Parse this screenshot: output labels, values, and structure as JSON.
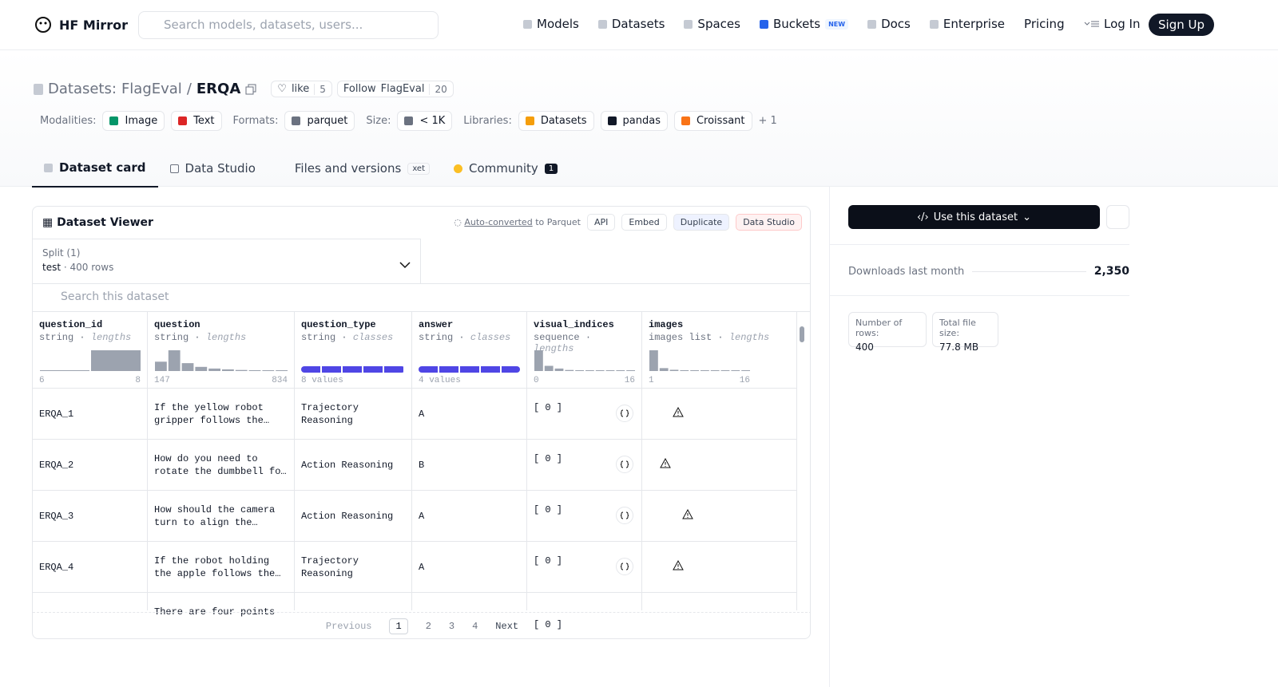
{
  "nav": {
    "brand": "HF Mirror",
    "search": "Search models, datasets, users...",
    "links": [
      "Models",
      "Datasets",
      "Spaces",
      "Buckets",
      "Docs",
      "Enterprise",
      "Pricing"
    ],
    "new_badge": "NEW",
    "login": "Log In",
    "signup": "Sign Up"
  },
  "header": {
    "kind": "Datasets:",
    "org": "FlagEval",
    "separator": "/",
    "name": "ERQA",
    "like": "like",
    "likes": 5,
    "follow": "Follow",
    "follow_org": "FlagEval",
    "followers": 20
  },
  "tags": [
    {
      "label": "Modalities:",
      "items": [
        "Image",
        "Text"
      ]
    },
    {
      "label": "Formats:",
      "items": [
        "parquet"
      ]
    },
    {
      "label": "Size:",
      "items": [
        "< 1K"
      ]
    },
    {
      "label": "Libraries:",
      "items": [
        "Datasets",
        "pandas",
        "Croissant"
      ]
    }
  ],
  "tags_more": "+ 1",
  "tabs": [
    "Dataset card",
    "Data Studio",
    "Files and versions",
    "Community"
  ],
  "xet_badge": "xet",
  "community_count": 1,
  "viewer": {
    "title": "Dataset Viewer",
    "auto_converted": "Auto-converted",
    "to_parquet": "to Parquet",
    "buttons": [
      "API",
      "Embed",
      "Duplicate",
      "Data Studio"
    ],
    "split_label": "Split (1)",
    "split": "test",
    "dot": "·",
    "split_rows": "400 rows",
    "search": "Search this dataset",
    "columns": [
      {
        "name": "question_id",
        "dtype": "string",
        "stat": "lengths",
        "histogram": [
          2,
          100
        ],
        "range": [
          6,
          8
        ]
      },
      {
        "name": "question",
        "dtype": "string",
        "stat": "lengths",
        "histogram": [
          45,
          100,
          38,
          20,
          12,
          8,
          5,
          4,
          3,
          3
        ],
        "range": [
          147,
          834
        ]
      },
      {
        "name": "question_type",
        "dtype": "string",
        "stat": "classes",
        "range": [
          "8 values"
        ]
      },
      {
        "name": "answer",
        "dtype": "string",
        "stat": "classes",
        "range": [
          "4 values"
        ]
      },
      {
        "name": "visual_indices",
        "dtype": "sequence",
        "stat": "lengths",
        "histogram": [
          100,
          25,
          12,
          5,
          4,
          0,
          0,
          0,
          0,
          3
        ],
        "range": [
          0,
          16
        ]
      },
      {
        "name": "images",
        "dtype": "images list",
        "stat": "lengths",
        "histogram": [
          100,
          14,
          6,
          4,
          0,
          0,
          0,
          0,
          0,
          3
        ],
        "range": [
          1,
          16
        ]
      }
    ],
    "rows": [
      {
        "question_id": "ERQA_1",
        "question": "If the yellow robot gripper follows the…",
        "question_type": "Trajectory Reasoning",
        "answer": "A",
        "visual_indices": "[ 0 ]"
      },
      {
        "question_id": "ERQA_2",
        "question": "How do you need to rotate the dumbbell fo…",
        "question_type": "Action Reasoning",
        "answer": "B",
        "visual_indices": "[ 0 ]"
      },
      {
        "question_id": "ERQA_3",
        "question": "How should the camera turn to align the…",
        "question_type": "Action Reasoning",
        "answer": "A",
        "visual_indices": "[ 0 ]"
      },
      {
        "question_id": "ERQA_4",
        "question": "If the robot holding the apple follows the…",
        "question_type": "Trajectory Reasoning",
        "answer": "A",
        "visual_indices": "[ 0 ]"
      },
      {
        "question": "There are four points",
        "visual_indices": "[ 0 ]"
      }
    ],
    "pagination": {
      "previous": "Previous",
      "pages": [
        1,
        2,
        3,
        4
      ],
      "next": "Next"
    }
  },
  "sidebar": {
    "use": "Use this dataset",
    "downloads_label": "Downloads last month",
    "downloads": "2,350",
    "rows_label": "Number of rows:",
    "rows": 400,
    "size_label": "Total file size:",
    "size": "77.8 MB"
  }
}
